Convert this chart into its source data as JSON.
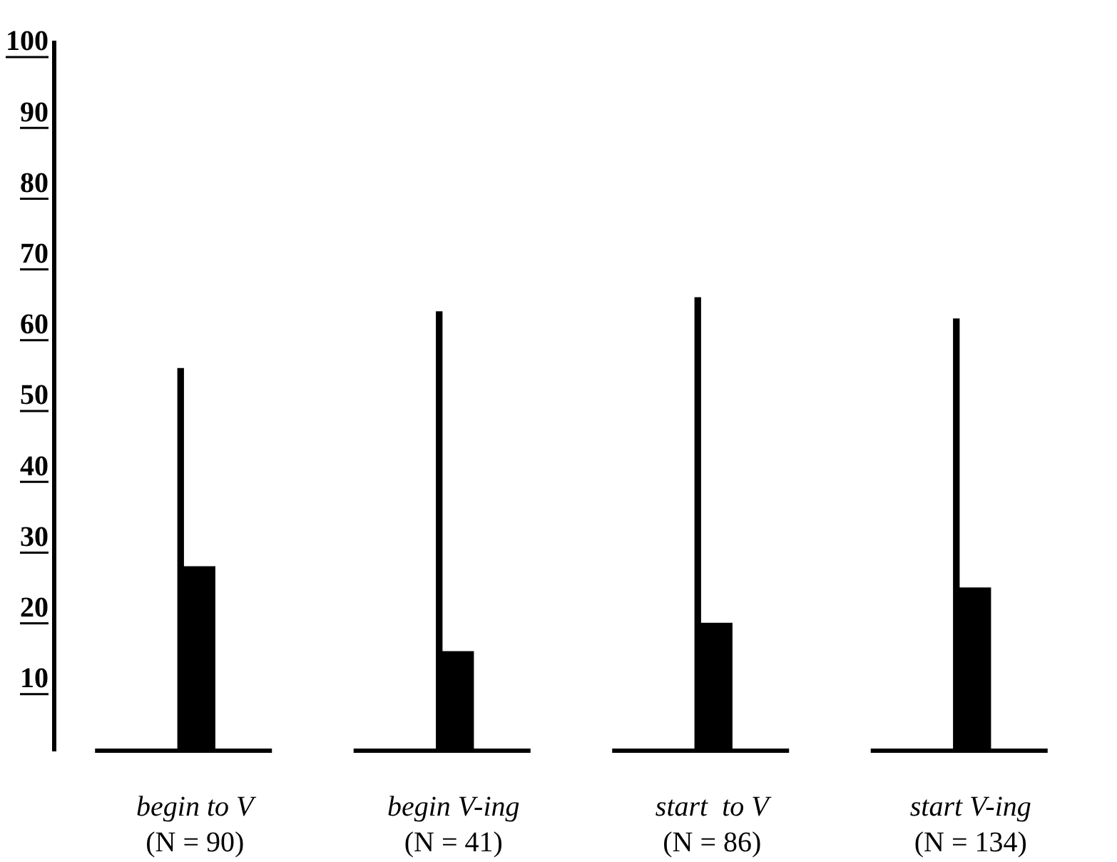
{
  "chart_data": {
    "type": "bar",
    "categories": [
      "begin to V\n(N = 90)",
      "begin V-ing\n(N = 41)",
      "start  to V\n(N = 86)",
      "start V-ing\n(N = 134)"
    ],
    "series": [
      {
        "color": "#000000",
        "values": [
          54,
          62,
          64,
          61
        ]
      },
      {
        "color": "#000000",
        "values": [
          26,
          14,
          18,
          23
        ]
      }
    ],
    "ylim": [
      0,
      100
    ],
    "yticks": [
      10,
      20,
      30,
      40,
      50,
      60,
      70,
      80,
      90,
      100
    ],
    "grid": false,
    "legend": false,
    "ref_lines": [
      {
        "axis": "y",
        "value": 0,
        "color": "#000000"
      }
    ]
  }
}
